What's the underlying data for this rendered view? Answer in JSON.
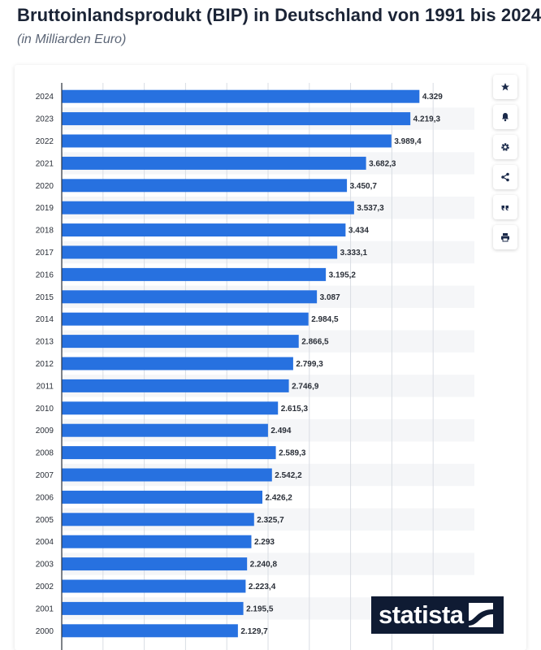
{
  "header": {
    "title": "Bruttoinlandsprodukt (BIP) in Deutschland von 1991 bis 2024",
    "subtitle": "(in Milliarden Euro)"
  },
  "toolbar": {
    "buttons": [
      "star-icon",
      "bell-icon",
      "gear-icon",
      "share-icon",
      "quote-icon",
      "print-icon"
    ]
  },
  "logo": {
    "text": "statista"
  },
  "colors": {
    "bar": "#2771e0",
    "stripe": "#f5f6f8",
    "grid": "#d9dde3",
    "axis": "#2a2f38",
    "text": "#2a2f38"
  },
  "chart_data": {
    "type": "bar",
    "orientation": "horizontal",
    "title": "Bruttoinlandsprodukt (BIP) in Deutschland von 1991 bis 2024",
    "subtitle": "(in Milliarden Euro)",
    "xlabel": "",
    "ylabel": "",
    "xlim": [
      0,
      5000
    ],
    "grid": true,
    "categories": [
      "2024",
      "2023",
      "2022",
      "2021",
      "2020",
      "2019",
      "2018",
      "2017",
      "2016",
      "2015",
      "2014",
      "2013",
      "2012",
      "2011",
      "2010",
      "2009",
      "2008",
      "2007",
      "2006",
      "2005",
      "2004",
      "2003",
      "2002",
      "2001",
      "2000"
    ],
    "values": [
      4329,
      4219.3,
      3989.4,
      3682.3,
      3450.7,
      3537.3,
      3434,
      3333.1,
      3195.2,
      3087,
      2984.5,
      2866.5,
      2799.3,
      2746.9,
      2615.3,
      2494,
      2589.3,
      2542.2,
      2426.2,
      2325.7,
      2293,
      2240.8,
      2223.4,
      2195.5,
      2129.7
    ],
    "labels": [
      "4.329",
      "4.219,3",
      "3.989,4",
      "3.682,3",
      "3.450,7",
      "3.537,3",
      "3.434",
      "3.333,1",
      "3.195,2",
      "3.087",
      "2.984,5",
      "2.866,5",
      "2.799,3",
      "2.746,9",
      "2.615,3",
      "2.494",
      "2.589,3",
      "2.542,2",
      "2.426,2",
      "2.325,7",
      "2.293",
      "2.240,8",
      "2.223,4",
      "2.195,5",
      "2.129,7"
    ]
  }
}
